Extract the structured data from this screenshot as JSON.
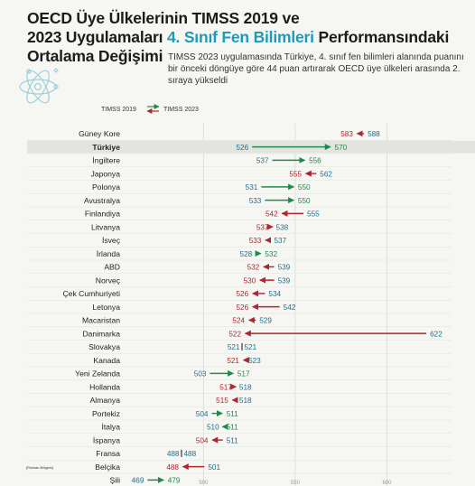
{
  "title": {
    "line1": "OECD Üye Ülkelerinin TIMSS 2019 ve",
    "line2_pre": "2023 Uygulamaları ",
    "line2_highlight": "4. Sınıf Fen Bilimleri",
    "line2_post": " Performansındaki",
    "line3": "Ortalama Değişimi"
  },
  "description": "TIMSS 2023 uygulamasında Türkiye, 4. sınıf fen bilimleri alanında puanını bir önceki döngüye göre 44 puan artırarak OECD üye ülkeleri arasında 2. sıraya yükseldi",
  "colors": {
    "increase": "#1f8a4c",
    "decrease": "#b0262f",
    "value_2023": "#1f6f8f",
    "highlight": "#1f9bb8",
    "grid": "#d8d8d4"
  },
  "chart_data": {
    "type": "dumbbell",
    "legend": {
      "from": "TIMSS 2019",
      "to": "TIMSS 2023"
    },
    "x_ticks": [
      500,
      550,
      600
    ],
    "xlim": [
      440,
      650
    ],
    "highlight": "Türkiye",
    "rows": [
      {
        "country": "Güney Kore",
        "v2019": 588,
        "v2023": 583
      },
      {
        "country": "Türkiye",
        "v2019": 526,
        "v2023": 570
      },
      {
        "country": "İngiltere",
        "v2019": 537,
        "v2023": 556
      },
      {
        "country": "Japonya",
        "v2019": 562,
        "v2023": 555
      },
      {
        "country": "Polonya",
        "v2019": 531,
        "v2023": 550
      },
      {
        "country": "Avustralya",
        "v2019": 533,
        "v2023": 550
      },
      {
        "country": "Finlandiya",
        "v2019": 555,
        "v2023": 542
      },
      {
        "country": "Litvanya",
        "v2019": 538,
        "v2023": 537
      },
      {
        "country": "İsveç",
        "v2019": 537,
        "v2023": 533
      },
      {
        "country": "İrlanda",
        "v2019": 528,
        "v2023": 532
      },
      {
        "country": "ABD",
        "v2019": 539,
        "v2023": 532
      },
      {
        "country": "Norveç",
        "v2019": 539,
        "v2023": 530
      },
      {
        "country": "Çek Cumhuriyeti",
        "v2019": 534,
        "v2023": 526
      },
      {
        "country": "Letonya",
        "v2019": 542,
        "v2023": 526
      },
      {
        "country": "Macaristan",
        "v2019": 529,
        "v2023": 524
      },
      {
        "country": "Danimarka",
        "v2019": 622,
        "v2023": 522
      },
      {
        "country": "Slovakya",
        "v2019": 521,
        "v2023": 521
      },
      {
        "country": "Kanada",
        "v2019": 523,
        "v2023": 521
      },
      {
        "country": "Yeni Zelanda",
        "v2019": 503,
        "v2023": 517
      },
      {
        "country": "Hollanda",
        "v2019": 518,
        "v2023": 517
      },
      {
        "country": "Almanya",
        "v2019": 518,
        "v2023": 515
      },
      {
        "country": "Portekiz",
        "v2019": 504,
        "v2023": 511
      },
      {
        "country": "İtalya",
        "v2019": 510,
        "v2023": 511
      },
      {
        "country": "İspanya",
        "v2019": 511,
        "v2023": 504
      },
      {
        "country": "Fransa",
        "v2019": 488,
        "v2023": 488
      },
      {
        "country": "Belçika",
        "note": "(Flaman Bölgesi)",
        "v2019": 501,
        "v2023": 488
      },
      {
        "country": "Şili",
        "v2019": 469,
        "v2023": 479
      }
    ]
  }
}
